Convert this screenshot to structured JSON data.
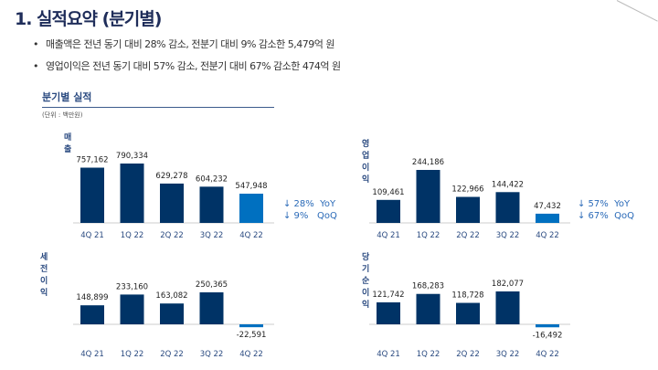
{
  "title": "1. 실적요약 (분기별)",
  "bullets": [
    "매출액은 전년 동기 대비 28% 감소, 전분기 대비 9% 감소한 5,479억 원",
    "영업이익은 전년 동기 대비 57% 감소, 전분기 대비 67% 감소한 474억 원"
  ],
  "section_title": "분기별 실적",
  "unit": "(단위 : 백만원)",
  "colors": {
    "bar": "#003366",
    "highlight": "#0070c0"
  },
  "chart_data": [
    {
      "type": "bar",
      "title": "매출",
      "categories": [
        "4Q 21",
        "1Q 22",
        "2Q 22",
        "3Q 22",
        "4Q 22"
      ],
      "values": [
        757162,
        790334,
        629278,
        604232,
        547948
      ],
      "labels": [
        "757,162",
        "790,334",
        "629,278",
        "604,232",
        "547,948"
      ],
      "yoy": "↓ 28%  YoY",
      "qoq": "↓ 9%   QoQ"
    },
    {
      "type": "bar",
      "title": "영업이익",
      "categories": [
        "4Q 21",
        "1Q 22",
        "2Q 22",
        "3Q 22",
        "4Q 22"
      ],
      "values": [
        109461,
        244186,
        122966,
        144422,
        47432
      ],
      "labels": [
        "109,461",
        "244,186",
        "122,966",
        "144,422",
        "47,432"
      ],
      "yoy": "↓ 57%  YoY",
      "qoq": "↓ 67%  QoQ"
    },
    {
      "type": "bar",
      "title": "세전이익",
      "categories": [
        "4Q 21",
        "1Q 22",
        "2Q 22",
        "3Q 22",
        "4Q 22"
      ],
      "values": [
        148899,
        233160,
        163082,
        250365,
        -22591
      ],
      "labels": [
        "148,899",
        "233,160",
        "163,082",
        "250,365",
        "-22,591"
      ]
    },
    {
      "type": "bar",
      "title": "당기순이익",
      "categories": [
        "4Q 21",
        "1Q 22",
        "2Q 22",
        "3Q 22",
        "4Q 22"
      ],
      "values": [
        121742,
        168283,
        118728,
        182077,
        -16492
      ],
      "labels": [
        "121,742",
        "168,283",
        "118,728",
        "182,077",
        "-16,492"
      ]
    }
  ]
}
